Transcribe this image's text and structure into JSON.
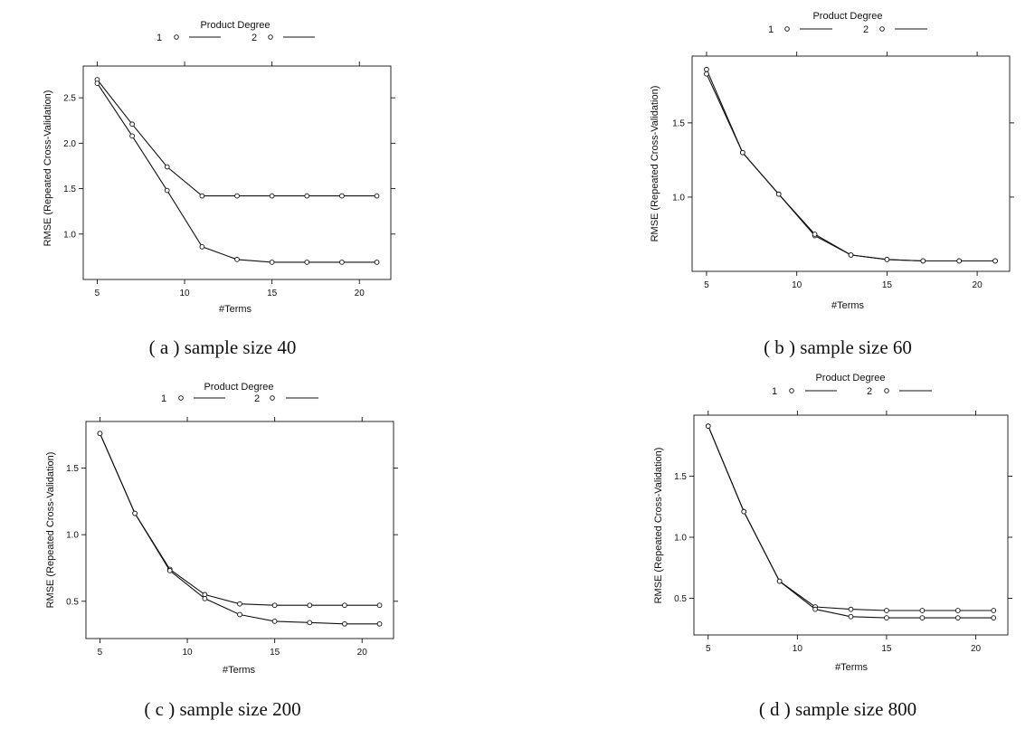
{
  "chart_data": [
    {
      "type": "line",
      "caption": "( a ) sample size 40",
      "legend_title": "Product Degree",
      "xlabel": "#Terms",
      "ylabel": "RMSE (Repeated Cross-Validation)",
      "xlim": [
        4.2,
        21.8
      ],
      "ylim": [
        0.5,
        2.85
      ],
      "xticks": [
        5,
        10,
        15,
        20
      ],
      "xtick_labels": [
        "5",
        "10",
        "15",
        "20"
      ],
      "yticks": [
        1.0,
        1.5,
        2.0,
        2.5
      ],
      "ytick_labels": [
        "1.0",
        "1.5",
        "2.0",
        "2.5"
      ],
      "x": [
        5,
        7,
        9,
        11,
        13,
        15,
        17,
        19,
        21
      ],
      "series": [
        {
          "name": "1",
          "values": [
            2.7,
            2.21,
            1.74,
            1.42,
            1.42,
            1.42,
            1.42,
            1.42,
            1.42
          ]
        },
        {
          "name": "2",
          "values": [
            2.66,
            2.08,
            1.48,
            0.86,
            0.72,
            0.69,
            0.69,
            0.69,
            0.69
          ]
        }
      ]
    },
    {
      "type": "line",
      "caption": "( b ) sample size 60",
      "legend_title": "Product Degree",
      "xlabel": "#Terms",
      "ylabel": "RMSE (Repeated Cross-Validation)",
      "xlim": [
        4.2,
        21.8
      ],
      "ylim": [
        0.5,
        1.95
      ],
      "xticks": [
        5,
        10,
        15,
        20
      ],
      "xtick_labels": [
        "5",
        "10",
        "15",
        "20"
      ],
      "yticks": [
        1.0,
        1.5
      ],
      "ytick_labels": [
        "1.0",
        "1.5"
      ],
      "x": [
        5,
        7,
        9,
        11,
        13,
        15,
        17,
        19,
        21
      ],
      "series": [
        {
          "name": "1",
          "values": [
            1.86,
            1.3,
            1.02,
            0.74,
            0.61,
            0.58,
            0.57,
            0.57,
            0.57
          ]
        },
        {
          "name": "2",
          "values": [
            1.83,
            1.3,
            1.02,
            0.75,
            0.61,
            0.58,
            0.57,
            0.57,
            0.57
          ]
        }
      ]
    },
    {
      "type": "line",
      "caption": "( c ) sample size 200",
      "legend_title": "Product Degree",
      "xlabel": "#Terms",
      "ylabel": "RMSE (Repeated Cross-Validation)",
      "xlim": [
        4.2,
        21.8
      ],
      "ylim": [
        0.22,
        1.85
      ],
      "xticks": [
        5,
        10,
        15,
        20
      ],
      "xtick_labels": [
        "5",
        "10",
        "15",
        "20"
      ],
      "yticks": [
        0.5,
        1.0,
        1.5
      ],
      "ytick_labels": [
        "0.5",
        "1.0",
        "1.5"
      ],
      "x": [
        5,
        7,
        9,
        11,
        13,
        15,
        17,
        19,
        21
      ],
      "series": [
        {
          "name": "1",
          "values": [
            1.76,
            1.16,
            0.74,
            0.55,
            0.48,
            0.47,
            0.47,
            0.47,
            0.47
          ]
        },
        {
          "name": "2",
          "values": [
            1.76,
            1.16,
            0.73,
            0.52,
            0.4,
            0.35,
            0.34,
            0.33,
            0.33
          ]
        }
      ]
    },
    {
      "type": "line",
      "caption": "( d ) sample size 800",
      "legend_title": "Product Degree",
      "xlabel": "#Terms",
      "ylabel": "RMSE (Repeated Cross-Validation)",
      "xlim": [
        4.2,
        21.8
      ],
      "ylim": [
        0.2,
        2.0
      ],
      "xticks": [
        5,
        10,
        15,
        20
      ],
      "xtick_labels": [
        "5",
        "10",
        "15",
        "20"
      ],
      "yticks": [
        0.5,
        1.0,
        1.5
      ],
      "ytick_labels": [
        "0.5",
        "1.0",
        "1.5"
      ],
      "x": [
        5,
        7,
        9,
        11,
        13,
        15,
        17,
        19,
        21
      ],
      "series": [
        {
          "name": "1",
          "values": [
            1.91,
            1.21,
            0.64,
            0.43,
            0.41,
            0.4,
            0.4,
            0.4,
            0.4
          ]
        },
        {
          "name": "2",
          "values": [
            1.91,
            1.21,
            0.64,
            0.41,
            0.35,
            0.34,
            0.34,
            0.34,
            0.34
          ]
        }
      ]
    }
  ]
}
